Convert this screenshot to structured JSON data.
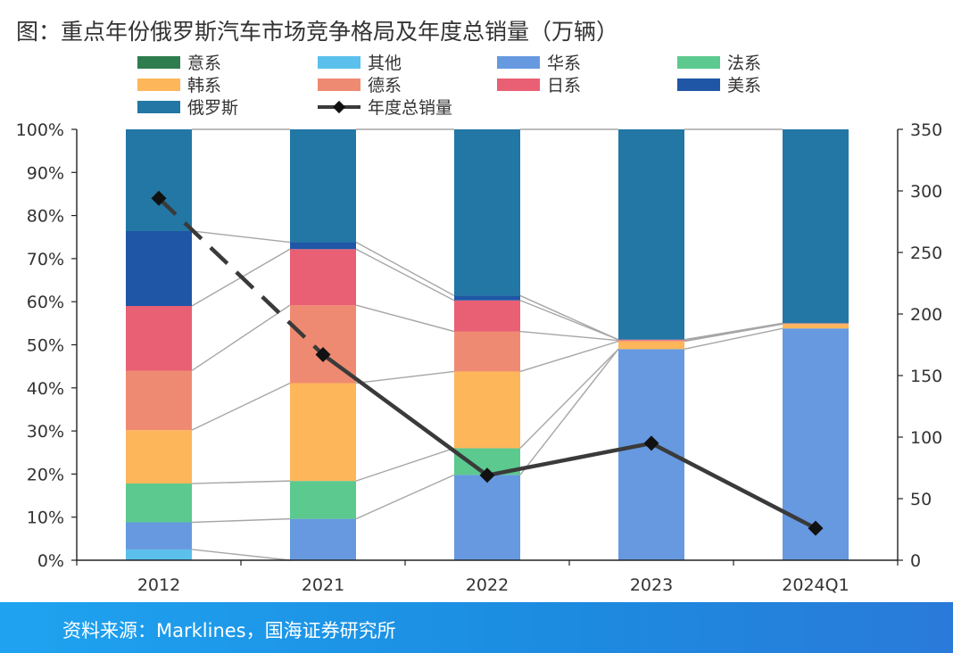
{
  "title": "图：重点年份俄罗斯汽车市场竞争格局及年度总销量（万辆）",
  "source": "资料来源：Marklines，国海证券研究所",
  "chart_data": {
    "type": "bar",
    "stacked": true,
    "categories": [
      "2012",
      "2021",
      "2022",
      "2023",
      "2024Q1"
    ],
    "y_left_ticks": [
      "0%",
      "10%",
      "20%",
      "30%",
      "40%",
      "50%",
      "60%",
      "70%",
      "80%",
      "90%",
      "100%"
    ],
    "y_right_ticks": [
      "0",
      "50",
      "100",
      "150",
      "200",
      "250",
      "300",
      "350"
    ],
    "ylim_left": [
      0,
      100
    ],
    "ylim_right": [
      0,
      350
    ],
    "legend_position": "top",
    "legend": [
      {
        "name": "意系",
        "color": "#2e7d4f",
        "kind": "box"
      },
      {
        "name": "其他",
        "color": "#5bc0eb",
        "kind": "box"
      },
      {
        "name": "华系",
        "color": "#6699e0",
        "kind": "box"
      },
      {
        "name": "法系",
        "color": "#5cc98f",
        "kind": "box"
      },
      {
        "name": "韩系",
        "color": "#fdb65a",
        "kind": "box"
      },
      {
        "name": "德系",
        "color": "#ef8a72",
        "kind": "box"
      },
      {
        "name": "日系",
        "color": "#e95f74",
        "kind": "box"
      },
      {
        "name": "美系",
        "color": "#1f56a6",
        "kind": "box"
      },
      {
        "name": "俄罗斯",
        "color": "#2277a4",
        "kind": "box"
      },
      {
        "name": "年度总销量",
        "color": "#3a3a3a",
        "kind": "line"
      }
    ],
    "series": [
      {
        "name": "意系",
        "color": "#2e7d4f",
        "values": [
          0.0,
          0.0,
          0.0,
          0.0,
          0.0
        ]
      },
      {
        "name": "其他",
        "color": "#5bc0eb",
        "values": [
          2.5,
          0.0,
          0.0,
          0.0,
          0.0
        ]
      },
      {
        "name": "华系",
        "color": "#6699e0",
        "values": [
          6.3,
          9.6,
          19.8,
          49.0,
          53.8
        ]
      },
      {
        "name": "法系",
        "color": "#5cc98f",
        "values": [
          9.0,
          8.8,
          6.2,
          0.0,
          0.0
        ]
      },
      {
        "name": "韩系",
        "color": "#fdb65a",
        "values": [
          12.4,
          22.7,
          17.8,
          1.8,
          1.0
        ]
      },
      {
        "name": "德系",
        "color": "#ef8a72",
        "values": [
          13.8,
          18.1,
          9.3,
          0.2,
          0.2
        ]
      },
      {
        "name": "日系",
        "color": "#e95f74",
        "values": [
          15.0,
          13.0,
          7.2,
          0.2,
          0.0
        ]
      },
      {
        "name": "美系",
        "color": "#1f56a6",
        "values": [
          17.4,
          1.6,
          1.1,
          0.0,
          0.0
        ]
      },
      {
        "name": "俄罗斯",
        "color": "#2277a4",
        "values": [
          23.6,
          26.2,
          38.6,
          48.8,
          45.0
        ]
      }
    ],
    "line": {
      "name": "年度总销量",
      "color": "#3a3a3a",
      "axis": "right",
      "values": [
        294,
        167,
        69,
        95,
        26
      ]
    }
  }
}
